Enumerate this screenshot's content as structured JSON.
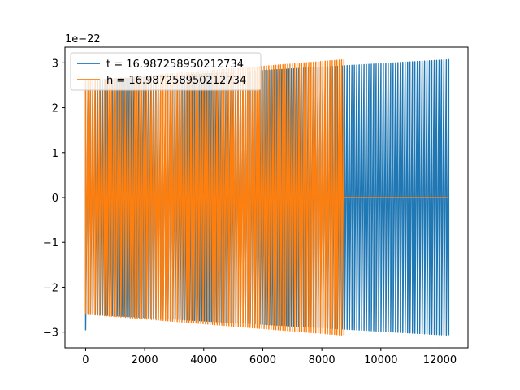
{
  "chart_data": {
    "type": "line",
    "title": "",
    "xlabel": "",
    "ylabel": "",
    "y_offset_label": "1e−22",
    "xlim": [
      -700,
      12950
    ],
    "ylim": [
      -3.35,
      3.35
    ],
    "x_ticks": [
      0,
      2000,
      4000,
      6000,
      8000,
      10000,
      12000
    ],
    "x_tick_labels": [
      "0",
      "2000",
      "4000",
      "6000",
      "8000",
      "10000",
      "12000"
    ],
    "y_ticks": [
      -3,
      -2,
      -1,
      0,
      1,
      2,
      3
    ],
    "y_tick_labels": [
      "−3",
      "−2",
      "−1",
      "0",
      "1",
      "2",
      "3"
    ],
    "grid": false,
    "legend_position": "upper-left",
    "series": [
      {
        "name": "t = 16.987258950212734",
        "color": "#1f77b4",
        "x_range": [
          0,
          12300
        ],
        "amplitude_start": 2.6,
        "amplitude_end": 3.07,
        "initial_min": -2.95,
        "oscillation_cycles": 150,
        "description_of_shape": "oscillating waveform with slowly increasing amplitude"
      },
      {
        "name": "h = 16.987258950212734",
        "color": "#ff7f0e",
        "x_range": [
          0,
          8750
        ],
        "amplitude_start": 2.6,
        "amplitude_end": 3.07,
        "oscillation_cycles": 110,
        "flat_after": {
          "x_start": 8750,
          "x_end": 12300,
          "value": 0
        }
      }
    ]
  }
}
